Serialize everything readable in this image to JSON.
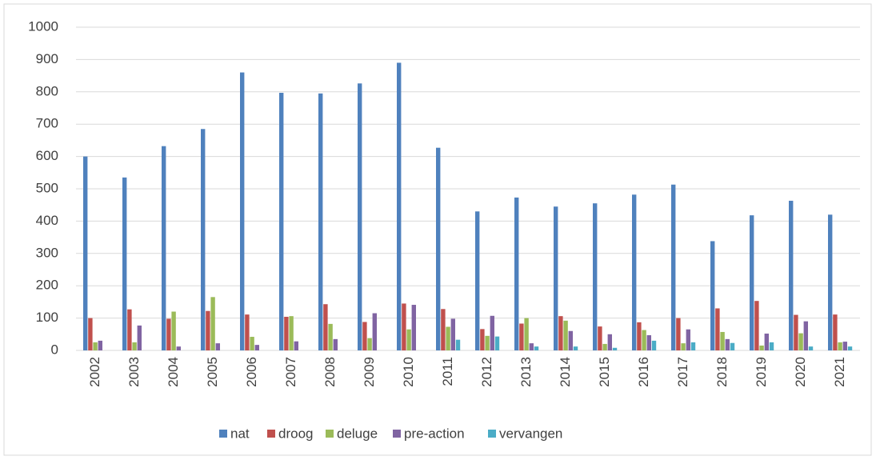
{
  "chart_data": {
    "type": "bar",
    "categories": [
      "2002",
      "2003",
      "2004",
      "2005",
      "2006",
      "2007",
      "2008",
      "2009",
      "2010",
      "2011",
      "2012",
      "2013",
      "2014",
      "2015",
      "2016",
      "2017",
      "2018",
      "2019",
      "2020",
      "2021"
    ],
    "series": [
      {
        "name": "nat",
        "color": "#4f81bd",
        "values": [
          600,
          535,
          632,
          685,
          860,
          797,
          795,
          826,
          890,
          627,
          430,
          473,
          445,
          455,
          482,
          513,
          338,
          418,
          463,
          420
        ]
      },
      {
        "name": "droog",
        "color": "#c0504d",
        "values": [
          100,
          127,
          98,
          122,
          111,
          104,
          143,
          88,
          145,
          128,
          66,
          83,
          106,
          74,
          87,
          100,
          130,
          153,
          110,
          111
        ]
      },
      {
        "name": "deluge",
        "color": "#9bbb59",
        "values": [
          25,
          25,
          120,
          165,
          42,
          106,
          82,
          38,
          65,
          73,
          45,
          100,
          92,
          20,
          63,
          22,
          57,
          15,
          53,
          25
        ]
      },
      {
        "name": "pre-action",
        "color": "#8064a2",
        "values": [
          30,
          77,
          12,
          22,
          17,
          28,
          35,
          115,
          141,
          98,
          107,
          22,
          60,
          50,
          47,
          65,
          35,
          52,
          90,
          27
        ]
      },
      {
        "name": "vervangen",
        "color": "#4bacc6",
        "values": [
          0,
          0,
          0,
          0,
          0,
          0,
          0,
          0,
          0,
          33,
          43,
          12,
          12,
          8,
          30,
          25,
          23,
          25,
          12,
          12
        ]
      }
    ],
    "ylim": [
      0,
      1000
    ],
    "yticks": [
      0,
      100,
      200,
      300,
      400,
      500,
      600,
      700,
      800,
      900,
      1000
    ],
    "grid": true,
    "legend": "bottom"
  }
}
